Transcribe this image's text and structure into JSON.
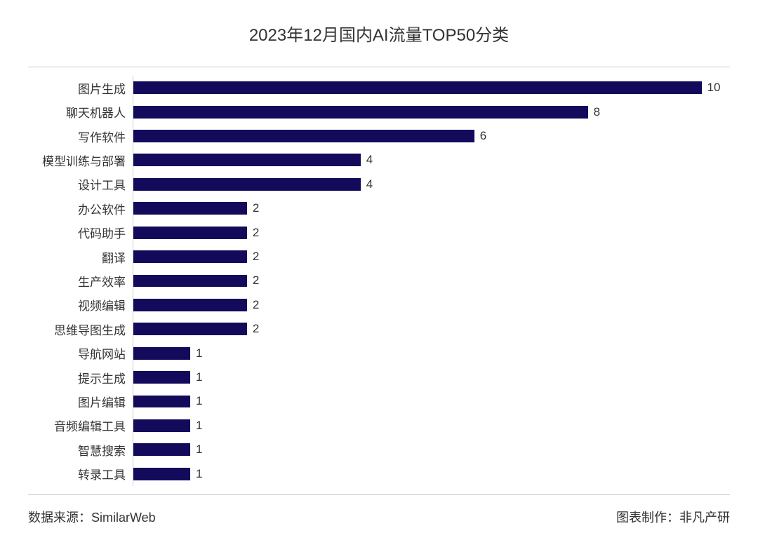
{
  "chart": {
    "type": "bar-horizontal",
    "title": "2023年12月国内AI流量TOP50分类",
    "title_fontsize": 24,
    "title_color": "#333333",
    "background_color": "#ffffff",
    "bar_color": "#130a5b",
    "border_color": "#cccccc",
    "label_fontsize": 17,
    "label_color": "#333333",
    "value_fontsize": 17,
    "value_color": "#333333",
    "xmax": 10.5,
    "bar_height_ratio": 0.52,
    "categories": [
      "图片生成",
      "聊天机器人",
      "写作软件",
      "模型训练与部署",
      "设计工具",
      "办公软件",
      "代码助手",
      "翻译",
      "生产效率",
      "视频编辑",
      "思维导图生成",
      "导航网站",
      "提示生成",
      "图片编辑",
      "音频编辑工具",
      "智慧搜索",
      "转录工具"
    ],
    "values": [
      10,
      8,
      6,
      4,
      4,
      2,
      2,
      2,
      2,
      2,
      2,
      1,
      1,
      1,
      1,
      1,
      1
    ]
  },
  "footer": {
    "source_label": "数据来源：SimilarWeb",
    "credit_label": "图表制作：非凡产研",
    "fontsize": 18,
    "color": "#333333"
  }
}
